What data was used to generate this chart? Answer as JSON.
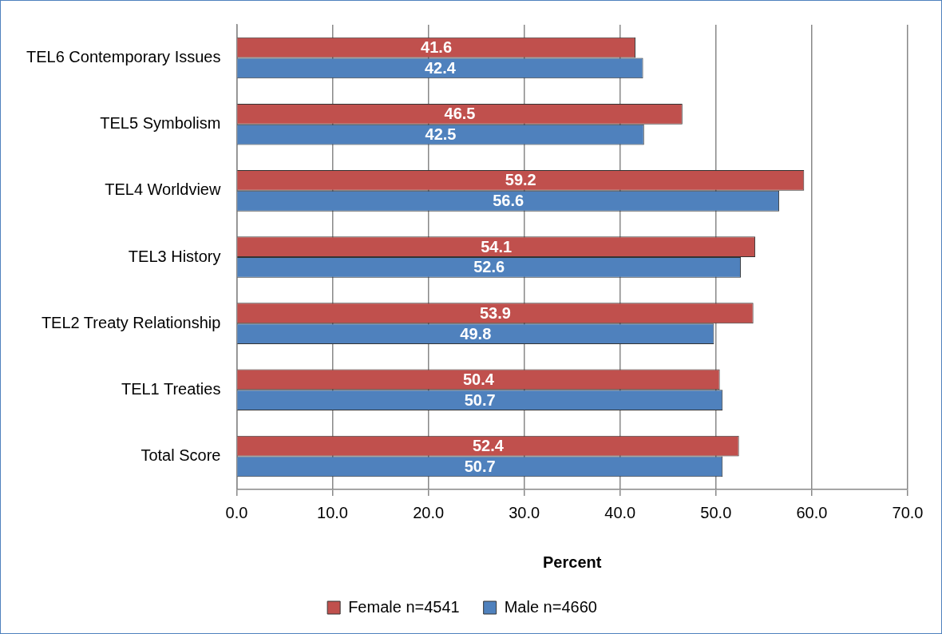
{
  "chart_data": {
    "type": "bar",
    "orientation": "horizontal",
    "xlabel": "Percent",
    "categories": [
      "TEL6 Contemporary Issues",
      "TEL5 Symbolism",
      "TEL4 Worldview",
      "TEL3 History",
      "TEL2 Treaty Relationship",
      "TEL1 Treaties",
      "Total Score"
    ],
    "series": [
      {
        "name": "Female n=4541",
        "color": "#c0504d",
        "values": [
          41.6,
          46.5,
          59.2,
          54.1,
          53.9,
          50.4,
          52.4
        ]
      },
      {
        "name": "Male n=4660",
        "color": "#4f81bd",
        "values": [
          42.4,
          42.5,
          56.6,
          52.6,
          49.8,
          50.7,
          50.7
        ]
      }
    ],
    "xlim": [
      0,
      70
    ],
    "xticks": [
      {
        "value": 0,
        "label": "0.0"
      },
      {
        "value": 10,
        "label": "10.0"
      },
      {
        "value": 20,
        "label": "20.0"
      },
      {
        "value": 30,
        "label": "30.0"
      },
      {
        "value": 40,
        "label": "40.0"
      },
      {
        "value": 50,
        "label": "50.0"
      },
      {
        "value": 60,
        "label": "60.0"
      },
      {
        "value": 70,
        "label": "70.0"
      }
    ],
    "grid": "x",
    "legend": "bottom",
    "data_labels": true
  }
}
